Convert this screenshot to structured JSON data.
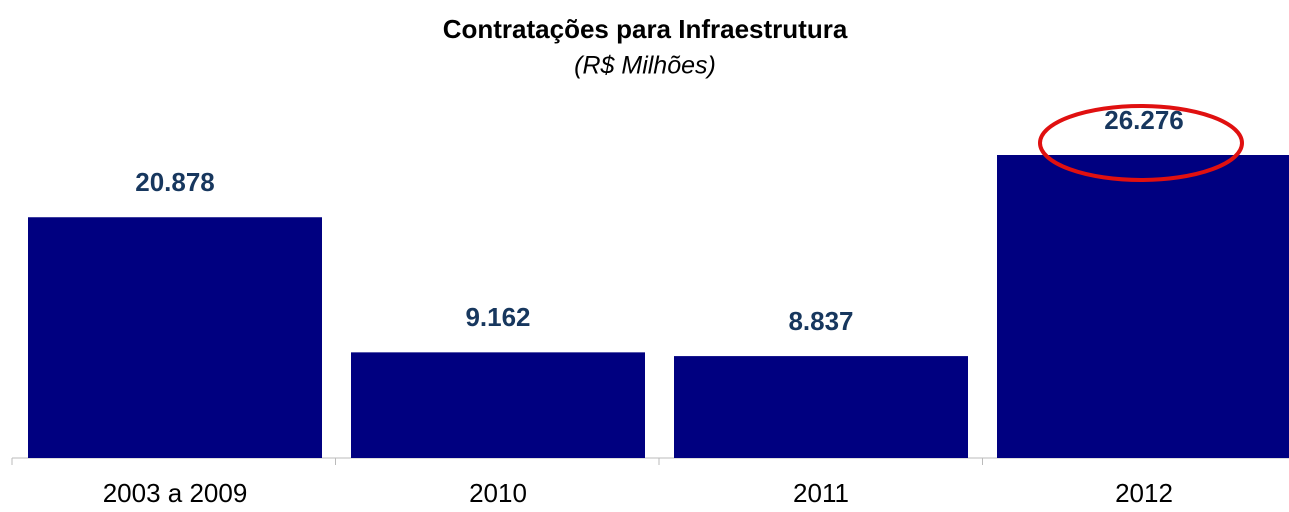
{
  "chart_data": {
    "type": "bar",
    "title": "Contratações para Infraestrutura",
    "subtitle": "(R$ Milhões)",
    "categories": [
      "2003 a 2009",
      "2010",
      "2011",
      "2012"
    ],
    "values": [
      20878,
      9162,
      8837,
      26276
    ],
    "value_labels": [
      "20.878",
      "9.162",
      "8.837",
      "26.276"
    ],
    "color": "#000080"
  }
}
